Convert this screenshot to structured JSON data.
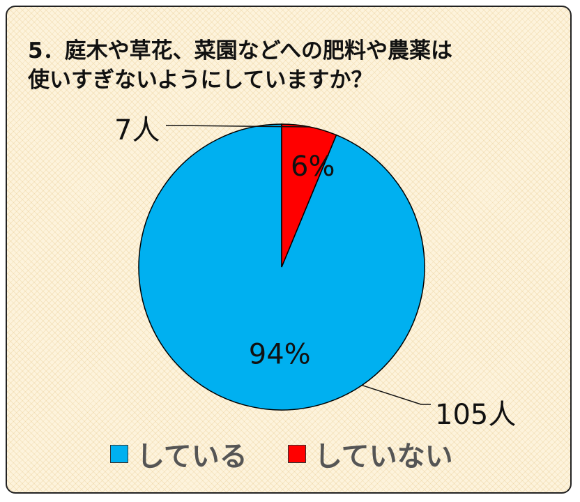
{
  "chart_data": {
    "type": "pie",
    "title_lines": [
      "5．庭木や草花、菜園などへの肥料や農薬は",
      "使いすぎないようにしていますか？"
    ],
    "slices": [
      {
        "label": "している",
        "value": 105,
        "value_label": "105人",
        "percent_label": "94%",
        "color": "#00b0f0"
      },
      {
        "label": "していない",
        "value": 7,
        "value_label": "7人",
        "percent_label": "6%",
        "color": "#ff0000"
      }
    ],
    "start": "12 o'clock",
    "direction": "counter-clockwise",
    "legend_position": "bottom"
  },
  "colors": {
    "frame_background": "#fdf3dc",
    "frame_border": "#222222",
    "slice_outline": "#000000",
    "legend_text": "#555555"
  }
}
